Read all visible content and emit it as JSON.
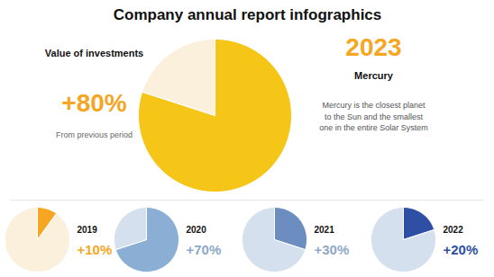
{
  "chart_data": [
    {
      "type": "pie",
      "title": "Company annual report infographics",
      "values": [
        80,
        20
      ],
      "colors": [
        "#F5C518",
        "#FAF0DC"
      ],
      "annotations": [
        {
          "text": "Value of investments"
        },
        {
          "text": "+80%",
          "color": "#F5A623"
        },
        {
          "text": "From previous period"
        },
        {
          "text": "2023",
          "color": "#F5A623"
        },
        {
          "text": "Mercury"
        },
        {
          "text": "Mercury is the closest planet\nto the Sun and the smallest\none in the entire Solar System"
        }
      ]
    },
    {
      "type": "pie",
      "values": [
        10,
        90
      ],
      "colors": [
        "#F5A623",
        "#FAF0DC"
      ],
      "annotations": [
        {
          "text": "2019"
        },
        {
          "text": "+10%",
          "color": "#F5A623"
        }
      ]
    },
    {
      "type": "pie",
      "values": [
        70,
        30
      ],
      "colors": [
        "#8BAFD4",
        "#D4E0EE"
      ],
      "annotations": [
        {
          "text": "2020"
        },
        {
          "text": "+70%",
          "color": "#8FA8C8"
        }
      ]
    },
    {
      "type": "pie",
      "values": [
        30,
        70
      ],
      "colors": [
        "#6B8DC0",
        "#D4E0EE"
      ],
      "annotations": [
        {
          "text": "2021"
        },
        {
          "text": "+30%",
          "color": "#8FA8C8"
        }
      ]
    },
    {
      "type": "pie",
      "values": [
        20,
        80
      ],
      "colors": [
        "#2E4FA3",
        "#D4E0EE"
      ],
      "annotations": [
        {
          "text": "2022"
        },
        {
          "text": "+20%",
          "color": "#2E4FA3"
        }
      ]
    }
  ]
}
